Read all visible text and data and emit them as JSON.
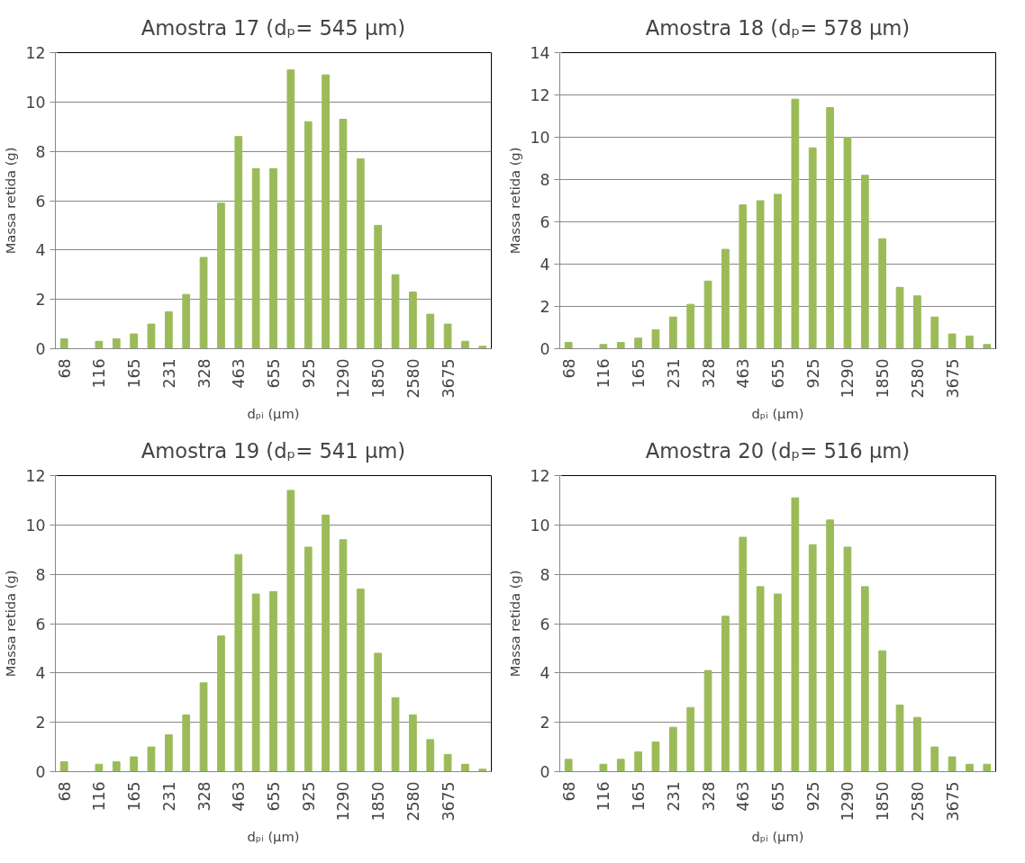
{
  "chart_data": [
    {
      "type": "bar",
      "title": "Amostra 17 (dₚ= 545 µm)",
      "xlabel": "dₚᵢ (µm)",
      "ylabel": "Massa retida (g)",
      "categories": [
        "68",
        null,
        "116",
        null,
        "165",
        null,
        "231",
        null,
        "328",
        null,
        "463",
        null,
        "655",
        null,
        "925",
        null,
        "1290",
        null,
        "1850",
        null,
        "2580",
        null,
        "3675",
        null,
        null
      ],
      "color": "#9bbb59",
      "grid": "y",
      "ylim": [
        0,
        12
      ],
      "yticks": [
        0,
        2,
        4,
        6,
        8,
        10,
        12
      ],
      "values": [
        0.4,
        0,
        0.3,
        0.4,
        0.6,
        1.0,
        1.5,
        2.2,
        3.7,
        5.9,
        8.6,
        7.3,
        7.3,
        11.3,
        9.2,
        11.1,
        9.3,
        7.7,
        5.0,
        3.0,
        2.3,
        1.4,
        1.0,
        0.3,
        0.1
      ]
    },
    {
      "type": "bar",
      "title": "Amostra 18 (dₚ= 578 µm)",
      "xlabel": "dₚᵢ (µm)",
      "ylabel": "Massa retida (g)",
      "categories": [
        "68",
        null,
        "116",
        null,
        "165",
        null,
        "231",
        null,
        "328",
        null,
        "463",
        null,
        "655",
        null,
        "925",
        null,
        "1290",
        null,
        "1850",
        null,
        "2580",
        null,
        "3675",
        null,
        null
      ],
      "color": "#9bbb59",
      "grid": "y",
      "ylim": [
        0,
        14
      ],
      "yticks": [
        0,
        2,
        4,
        6,
        8,
        10,
        12,
        14
      ],
      "values": [
        0.3,
        0,
        0.2,
        0.3,
        0.5,
        0.9,
        1.5,
        2.1,
        3.2,
        4.7,
        6.8,
        7.0,
        7.3,
        11.8,
        9.5,
        11.4,
        10.0,
        8.2,
        5.2,
        2.9,
        2.5,
        1.5,
        0.7,
        0.6,
        0.2
      ]
    },
    {
      "type": "bar",
      "title": "Amostra 19 (dₚ= 541 µm)",
      "xlabel": "dₚᵢ (µm)",
      "ylabel": "Massa retida (g)",
      "categories": [
        "68",
        null,
        "116",
        null,
        "165",
        null,
        "231",
        null,
        "328",
        null,
        "463",
        null,
        "655",
        null,
        "925",
        null,
        "1290",
        null,
        "1850",
        null,
        "2580",
        null,
        "3675",
        null,
        null
      ],
      "color": "#9bbb59",
      "grid": "y",
      "ylim": [
        0,
        12
      ],
      "yticks": [
        0,
        2,
        4,
        6,
        8,
        10,
        12
      ],
      "values": [
        0.4,
        0,
        0.3,
        0.4,
        0.6,
        1.0,
        1.5,
        2.3,
        3.6,
        5.5,
        8.8,
        7.2,
        7.3,
        11.4,
        9.1,
        10.4,
        9.4,
        7.4,
        4.8,
        3.0,
        2.3,
        1.3,
        0.7,
        0.3,
        0.1
      ]
    },
    {
      "type": "bar",
      "title": "Amostra 20 (dₚ= 516 µm)",
      "xlabel": "dₚᵢ (µm)",
      "ylabel": "Massa retida (g)",
      "categories": [
        "68",
        null,
        "116",
        null,
        "165",
        null,
        "231",
        null,
        "328",
        null,
        "463",
        null,
        "655",
        null,
        "925",
        null,
        "1290",
        null,
        "1850",
        null,
        "2580",
        null,
        "3675",
        null,
        null
      ],
      "color": "#9bbb59",
      "grid": "y",
      "ylim": [
        0,
        12
      ],
      "yticks": [
        0,
        2,
        4,
        6,
        8,
        10,
        12
      ],
      "values": [
        0.5,
        0,
        0.3,
        0.5,
        0.8,
        1.2,
        1.8,
        2.6,
        4.1,
        6.3,
        9.5,
        7.5,
        7.2,
        11.1,
        9.2,
        10.2,
        9.1,
        7.5,
        4.9,
        2.7,
        2.2,
        1.0,
        0.6,
        0.3,
        0.3
      ]
    }
  ]
}
